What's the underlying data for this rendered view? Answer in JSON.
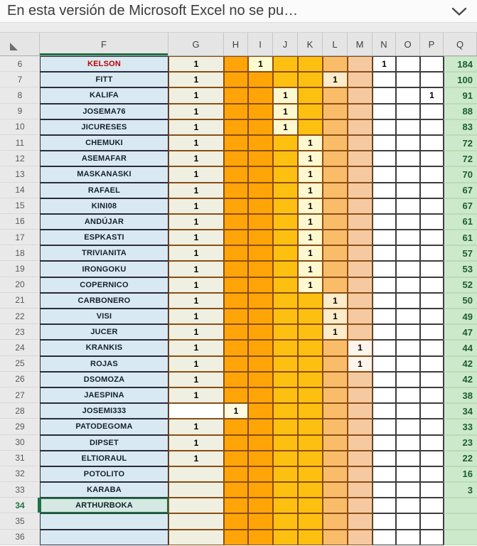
{
  "banner": {
    "message": "En esta versión de Microsoft Excel no se pu…"
  },
  "sheet": {
    "columns": [
      "F",
      "G",
      "H",
      "I",
      "J",
      "K",
      "L",
      "M",
      "N",
      "O",
      "P",
      "Q"
    ],
    "selected_column": "F",
    "selection": {
      "cell": "F34"
    },
    "colors": {
      "selection_green": "#1e7145",
      "selected_cell_fill": "#d5e8e1",
      "name_red": "#c00000",
      "q_text_green": "#1b5e2f",
      "border_brown": "#8a4d15",
      "column_fills": {
        "F": "#d9e9f2",
        "G": "#eff0e1",
        "H": "#ffa508",
        "I": "#ffa508",
        "J": "#fdc010",
        "K": "#fdc010",
        "L": "#f9bd6a",
        "M": "#f6caa0",
        "N": "#ffffff",
        "O": "#ffffff",
        "P": "#ffffff",
        "Q": "#cde9cb"
      },
      "value_cell_fills": {
        "G": "#eff0e1",
        "H": "#fdf8e0",
        "I": "#fdfbd0",
        "J": "#fdf8cf",
        "K": "#fdf8cf",
        "L": "#fcecca",
        "M": "#fdf4ec",
        "N": "#ffffff",
        "O": "#ffffff",
        "P": "#ffffff",
        "Q": "#cde9cb"
      }
    },
    "rows": [
      {
        "num": 6,
        "name": "KELSON",
        "name_color": "#c00000",
        "values": {
          "G": "1",
          "I": "1",
          "N": "1",
          "Q": "184"
        }
      },
      {
        "num": 7,
        "name": "FITT",
        "values": {
          "G": "1",
          "L": "1",
          "Q": "100"
        }
      },
      {
        "num": 8,
        "name": "KALIFA",
        "values": {
          "G": "1",
          "J": "1",
          "P": "1",
          "Q": "91"
        }
      },
      {
        "num": 9,
        "name": "JOSEMA76",
        "values": {
          "G": "1",
          "J": "1",
          "Q": "88"
        }
      },
      {
        "num": 10,
        "name": "JICURESES",
        "values": {
          "G": "1",
          "J": "1",
          "Q": "83"
        }
      },
      {
        "num": 11,
        "name": "CHEMUKI",
        "values": {
          "G": "1",
          "K": "1",
          "Q": "72"
        }
      },
      {
        "num": 12,
        "name": "ASEMAFAR",
        "values": {
          "G": "1",
          "K": "1",
          "Q": "72"
        }
      },
      {
        "num": 13,
        "name": "MASKANASKI",
        "values": {
          "G": "1",
          "K": "1",
          "Q": "70"
        }
      },
      {
        "num": 14,
        "name": "RAFAEL",
        "values": {
          "G": "1",
          "K": "1",
          "Q": "67"
        }
      },
      {
        "num": 15,
        "name": "KINI08",
        "values": {
          "G": "1",
          "K": "1",
          "Q": "67"
        }
      },
      {
        "num": 16,
        "name": "ANDÚJAR",
        "values": {
          "G": "1",
          "K": "1",
          "Q": "61"
        }
      },
      {
        "num": 17,
        "name": "ESPKASTI",
        "values": {
          "G": "1",
          "K": "1",
          "Q": "61"
        }
      },
      {
        "num": 18,
        "name": "TRIVIANITA",
        "values": {
          "G": "1",
          "K": "1",
          "Q": "57"
        }
      },
      {
        "num": 19,
        "name": "IRONGOKU",
        "values": {
          "G": "1",
          "K": "1",
          "Q": "53"
        }
      },
      {
        "num": 20,
        "name": "COPERNICO",
        "values": {
          "G": "1",
          "K": "1",
          "Q": "52"
        }
      },
      {
        "num": 21,
        "name": "CARBONERO",
        "values": {
          "G": "1",
          "L": "1",
          "Q": "50"
        }
      },
      {
        "num": 22,
        "name": "VISI",
        "values": {
          "G": "1",
          "L": "1",
          "Q": "49"
        }
      },
      {
        "num": 23,
        "name": "JUCER",
        "values": {
          "G": "1",
          "L": "1",
          "Q": "47"
        }
      },
      {
        "num": 24,
        "name": "KRANKIS",
        "values": {
          "G": "1",
          "M": "1",
          "Q": "44"
        }
      },
      {
        "num": 25,
        "name": "ROJAS",
        "values": {
          "G": "1",
          "M": "1",
          "Q": "42"
        }
      },
      {
        "num": 26,
        "name": "DSOMOZA",
        "values": {
          "G": "1",
          "Q": "42"
        }
      },
      {
        "num": 27,
        "name": "JAESPINA",
        "values": {
          "G": "1",
          "Q": "38"
        }
      },
      {
        "num": 28,
        "name": "JOSEMI333",
        "values": {
          "H": "1",
          "Q": "34"
        },
        "fill_overrides": {
          "G": "#ffffff"
        }
      },
      {
        "num": 29,
        "name": "PATODEGOMA",
        "values": {
          "G": "1",
          "Q": "33"
        }
      },
      {
        "num": 30,
        "name": "DIPSET",
        "values": {
          "G": "1",
          "Q": "23"
        }
      },
      {
        "num": 31,
        "name": "ELTIORAUL",
        "values": {
          "G": "1",
          "Q": "22"
        }
      },
      {
        "num": 32,
        "name": "POTOLITO",
        "values": {
          "Q": "16"
        }
      },
      {
        "num": 33,
        "name": "KARABA",
        "values": {
          "Q": "3"
        }
      },
      {
        "num": 34,
        "name": "ARTHURBOKA",
        "selected": true,
        "values": {}
      },
      {
        "num": 35,
        "name": "",
        "values": {}
      },
      {
        "num": 36,
        "name": "",
        "values": {}
      }
    ]
  }
}
